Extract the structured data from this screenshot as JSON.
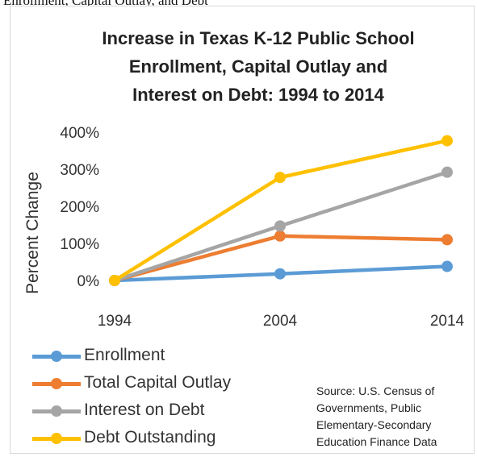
{
  "caption": "Enrollment, Capital Outlay, and Debt",
  "source_lines": [
    "Source: U.S. Census of",
    "Governments, Public",
    "Elementary-Secondary",
    "Education Finance Data"
  ],
  "chart_data": {
    "type": "line",
    "title_lines": [
      "Increase in Texas K-12 Public School",
      "Enrollment, Capital Outlay and",
      "Interest on Debt: 1994 to 2014"
    ],
    "xlabel": "",
    "ylabel": "Percent Change",
    "categories": [
      "1994",
      "2004",
      "2014"
    ],
    "yticks": [
      "0%",
      "100%",
      "200%",
      "300%",
      "400%"
    ],
    "ylim": [
      0,
      400
    ],
    "grid": false,
    "legend_position": "bottom",
    "series": [
      {
        "name": "Enrollment",
        "color": "#5b9bd5",
        "values": [
          0,
          18,
          38
        ]
      },
      {
        "name": "Total Capital Outlay",
        "color": "#ed7d31",
        "values": [
          0,
          120,
          110
        ]
      },
      {
        "name": "Interest on Debt",
        "color": "#a5a5a5",
        "values": [
          0,
          147,
          292
        ]
      },
      {
        "name": "Debt Outstanding",
        "color": "#ffc000",
        "values": [
          0,
          278,
          377
        ]
      }
    ]
  }
}
